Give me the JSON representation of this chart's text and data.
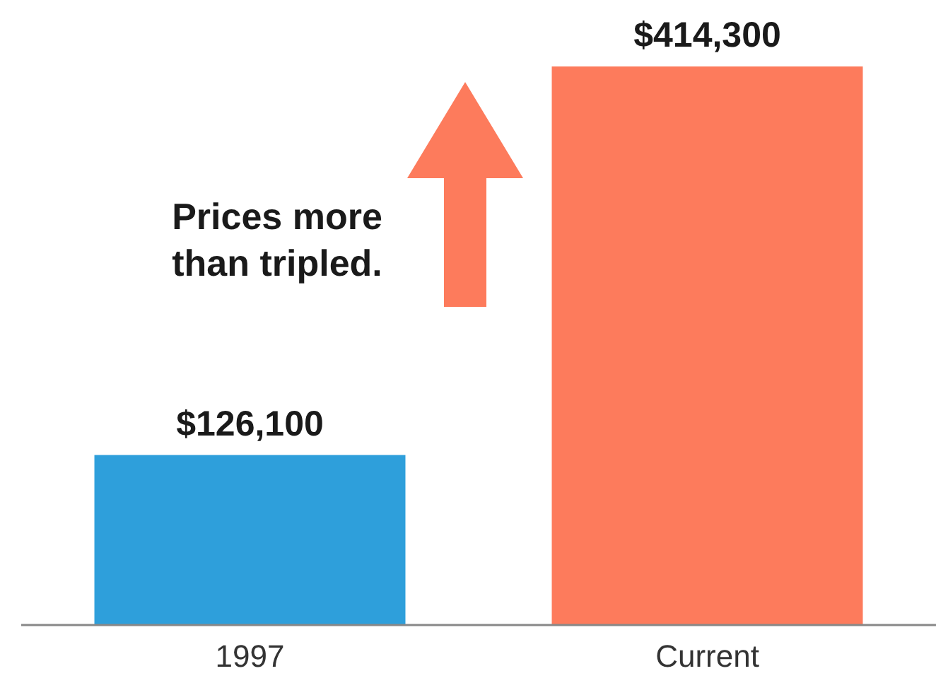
{
  "chart_data": {
    "type": "bar",
    "categories": [
      "1997",
      "Current"
    ],
    "values": [
      126100,
      414300
    ],
    "colors": [
      "#2e9fdb",
      "#fd7b5c"
    ],
    "value_labels": [
      "$126,100",
      "$414,300"
    ],
    "annotations": [
      "Prices more than tripled."
    ]
  }
}
